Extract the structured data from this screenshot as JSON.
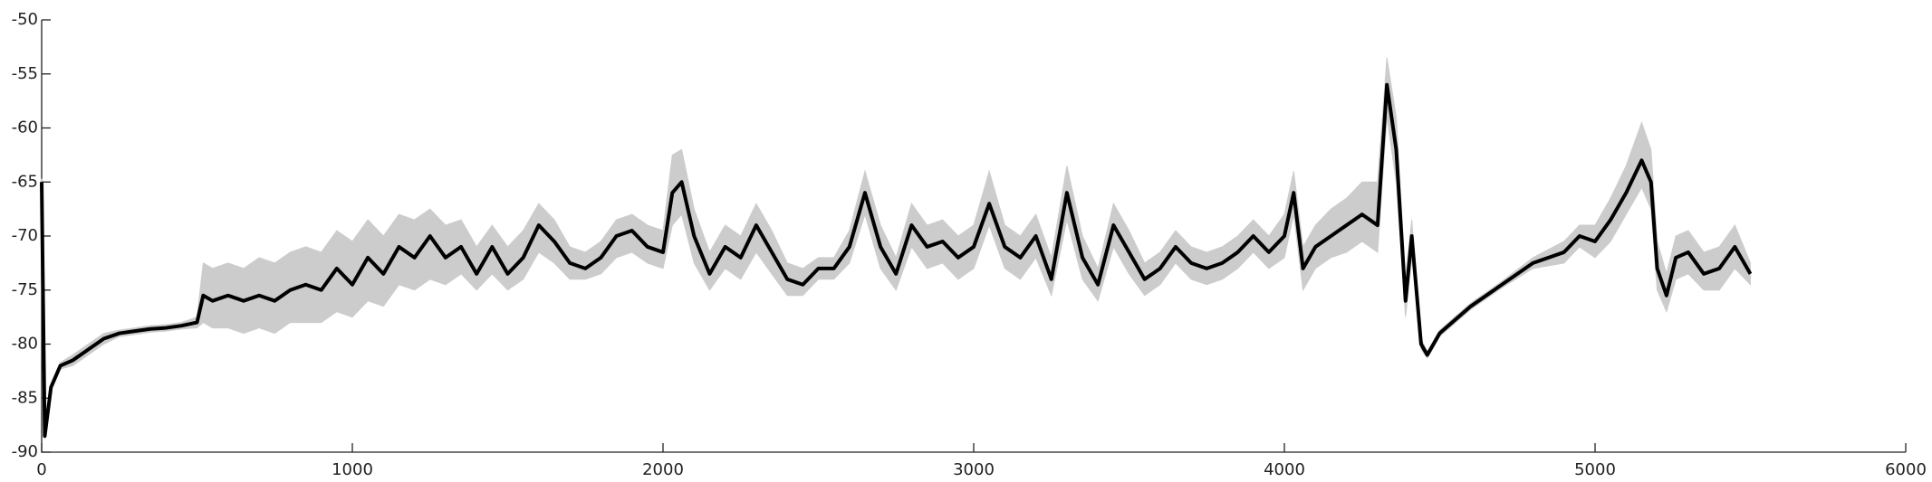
{
  "chart_data": {
    "type": "line",
    "xlim": [
      0,
      6000
    ],
    "xticks": [
      0,
      1000,
      2000,
      3000,
      4000,
      5000,
      6000
    ],
    "ylim": [
      -90,
      -50
    ],
    "yticks": [
      -50,
      -55,
      -60,
      -65,
      -70,
      -75,
      -80,
      -85,
      -90
    ],
    "x": [
      0,
      10,
      30,
      60,
      100,
      150,
      200,
      250,
      300,
      350,
      400,
      450,
      500,
      520,
      550,
      600,
      650,
      700,
      750,
      800,
      850,
      900,
      950,
      1000,
      1050,
      1100,
      1150,
      1200,
      1250,
      1300,
      1350,
      1400,
      1450,
      1500,
      1550,
      1600,
      1650,
      1700,
      1750,
      1800,
      1850,
      1900,
      1950,
      2000,
      2030,
      2060,
      2100,
      2150,
      2200,
      2250,
      2300,
      2350,
      2400,
      2450,
      2500,
      2550,
      2600,
      2650,
      2700,
      2750,
      2800,
      2850,
      2900,
      2950,
      3000,
      3050,
      3100,
      3150,
      3200,
      3250,
      3300,
      3350,
      3400,
      3450,
      3500,
      3550,
      3600,
      3650,
      3700,
      3750,
      3800,
      3850,
      3900,
      3950,
      4000,
      4030,
      4060,
      4100,
      4150,
      4200,
      4250,
      4300,
      4330,
      4360,
      4390,
      4410,
      4440,
      4460,
      4500,
      4600,
      4700,
      4800,
      4900,
      4950,
      5000,
      5050,
      5100,
      5150,
      5180,
      5200,
      5230,
      5260,
      5300,
      5350,
      5400,
      5450,
      5500
    ],
    "band": {
      "color": "#cccccc",
      "upper": [
        -64.7,
        -88.2,
        -83.7,
        -81.7,
        -81,
        -80,
        -79,
        -78.7,
        -78.5,
        -78.3,
        -78.2,
        -78,
        -77.5,
        -72.5,
        -73,
        -72.5,
        -73,
        -72,
        -72.5,
        -71.5,
        -71,
        -71.5,
        -69.5,
        -70.5,
        -68.5,
        -70,
        -68,
        -68.5,
        -67.5,
        -69,
        -68.5,
        -71,
        -69,
        -71,
        -69.5,
        -67,
        -68.5,
        -71,
        -71.5,
        -70.5,
        -68.5,
        -68,
        -69,
        -69.5,
        -62.5,
        -62,
        -67.5,
        -71.5,
        -69,
        -70,
        -67,
        -69.5,
        -72.5,
        -73,
        -72,
        -72,
        -69.5,
        -64,
        -69,
        -72,
        -67,
        -69,
        -68.5,
        -70,
        -69,
        -64,
        -69,
        -70,
        -68,
        -72,
        -63.5,
        -70,
        -73,
        -67,
        -69.5,
        -72.5,
        -71.5,
        -69.5,
        -71,
        -71.5,
        -71,
        -70,
        -68.5,
        -70,
        -68,
        -64,
        -71,
        -69,
        -67.5,
        -66.5,
        -65,
        -65,
        -53.5,
        -59,
        -74,
        -68.5,
        -79.5,
        -80.7,
        -78.7,
        -76.2,
        -74.2,
        -72,
        -70.5,
        -69,
        -69,
        -66.5,
        -63.5,
        -59.5,
        -62,
        -70.5,
        -73.5,
        -70,
        -69.5,
        -71.5,
        -71,
        -69,
        -72.5
      ],
      "lower": [
        -65.3,
        -88.8,
        -84.3,
        -82.3,
        -82,
        -81,
        -80,
        -79.3,
        -79.1,
        -78.9,
        -78.8,
        -78.6,
        -78.5,
        -78,
        -78.5,
        -78.5,
        -79,
        -78.5,
        -79,
        -78,
        -78,
        -78,
        -77,
        -77.5,
        -76,
        -76.5,
        -74.5,
        -75,
        -74,
        -74.5,
        -73.5,
        -75,
        -73.5,
        -75,
        -74,
        -71.5,
        -72.5,
        -74,
        -74,
        -73.5,
        -72,
        -71.5,
        -72.5,
        -73,
        -69,
        -68,
        -72.5,
        -75,
        -73,
        -74,
        -71.5,
        -73.5,
        -75.5,
        -75.5,
        -74,
        -74,
        -72.5,
        -68,
        -73,
        -75,
        -71,
        -73,
        -72.5,
        -74,
        -73,
        -69,
        -73,
        -74,
        -72,
        -75.5,
        -68.5,
        -74,
        -76,
        -71,
        -73.5,
        -75.5,
        -74.5,
        -72.5,
        -74,
        -74.5,
        -74,
        -73,
        -71.5,
        -73,
        -72,
        -68,
        -75,
        -73,
        -72,
        -71.5,
        -70.5,
        -71.5,
        -59,
        -65,
        -77.5,
        -72,
        -80.5,
        -81.3,
        -79.3,
        -76.8,
        -74.8,
        -73,
        -72.5,
        -71,
        -72,
        -70.5,
        -68,
        -65.5,
        -67.5,
        -75,
        -77,
        -74,
        -73.5,
        -75,
        -75,
        -73,
        -74.5
      ]
    },
    "series": [
      {
        "color": "#000000",
        "values": [
          -65,
          -88.5,
          -84,
          -82,
          -81.5,
          -80.5,
          -79.5,
          -79,
          -78.8,
          -78.6,
          -78.5,
          -78.3,
          -78,
          -75.5,
          -76,
          -75.5,
          -76,
          -75.5,
          -76,
          -75,
          -74.5,
          -75,
          -73,
          -74.5,
          -72,
          -73.5,
          -71,
          -72,
          -70,
          -72,
          -71,
          -73.5,
          -71,
          -73.5,
          -72,
          -69,
          -70.5,
          -72.5,
          -73,
          -72,
          -70,
          -69.5,
          -71,
          -71.5,
          -66,
          -65,
          -70,
          -73.5,
          -71,
          -72,
          -69,
          -71.5,
          -74,
          -74.5,
          -73,
          -73,
          -71,
          -66,
          -71,
          -73.5,
          -69,
          -71,
          -70.5,
          -72,
          -71,
          -67,
          -71,
          -72,
          -70,
          -74,
          -66,
          -72,
          -74.5,
          -69,
          -71.5,
          -74,
          -73,
          -71,
          -72.5,
          -73,
          -72.5,
          -71.5,
          -70,
          -71.5,
          -70,
          -66,
          -73,
          -71,
          -70,
          -69,
          -68,
          -69,
          -56,
          -62,
          -76,
          -70,
          -80,
          -81,
          -79,
          -76.5,
          -74.5,
          -72.5,
          -71.5,
          -70,
          -70.5,
          -68.5,
          -66,
          -63,
          -65,
          -73,
          -75.5,
          -72,
          -71.5,
          -73.5,
          -73,
          -71,
          -73.5
        ]
      }
    ]
  }
}
